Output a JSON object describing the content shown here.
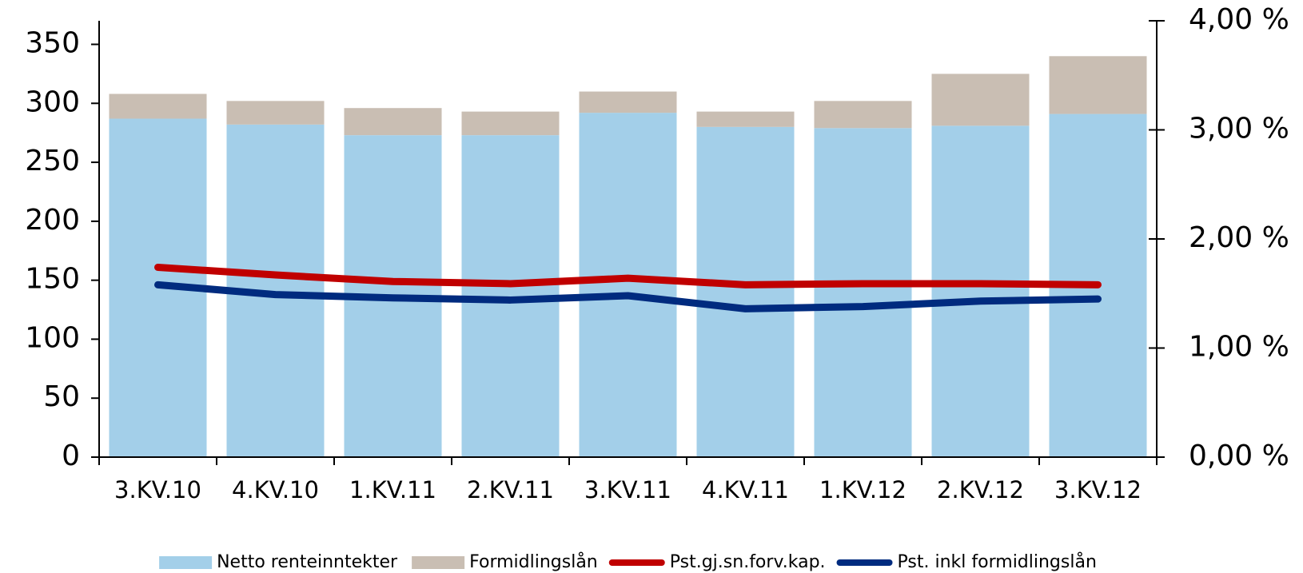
{
  "chart_data": {
    "type": "bar",
    "stacked": true,
    "categories": [
      "3.KV.10",
      "4.KV.10",
      "1.KV.11",
      "2.KV.11",
      "3.KV.11",
      "4.KV.11",
      "1.KV.12",
      "2.KV.12",
      "3.KV.12"
    ],
    "series": [
      {
        "name": "Netto renteinntekter",
        "color": "#a3cfe9",
        "values": [
          287,
          282,
          273,
          273,
          292,
          280,
          279,
          281,
          291
        ]
      },
      {
        "name": "Formidlingslån",
        "color": "#c9beb3",
        "values": [
          21,
          20,
          23,
          20,
          18,
          13,
          23,
          44,
          49
        ]
      },
      {
        "name": "Pst.gj.sn.forv.kap.",
        "color": "#c00000",
        "axis": "y2",
        "values": [
          1.74,
          1.67,
          1.61,
          1.59,
          1.64,
          1.58,
          1.59,
          1.59,
          1.58
        ]
      },
      {
        "name": "Pst. inkl formidlingslån",
        "color": "#002b7f",
        "axis": "y2",
        "values": [
          1.58,
          1.49,
          1.46,
          1.44,
          1.48,
          1.36,
          1.38,
          1.43,
          1.45
        ]
      }
    ],
    "ylim": [
      0,
      370
    ],
    "yticks": [
      0,
      50,
      100,
      150,
      200,
      250,
      300,
      350
    ],
    "y2lim": [
      0,
      4
    ],
    "y2ticks": [
      {
        "value": 0,
        "label": "0,00 %"
      },
      {
        "value": 1,
        "label": "1,00 %"
      },
      {
        "value": 2,
        "label": "2,00 %"
      },
      {
        "value": 3,
        "label": "3,00 %"
      },
      {
        "value": 4,
        "label": "4,00 %"
      }
    ],
    "legend": "bottom"
  }
}
